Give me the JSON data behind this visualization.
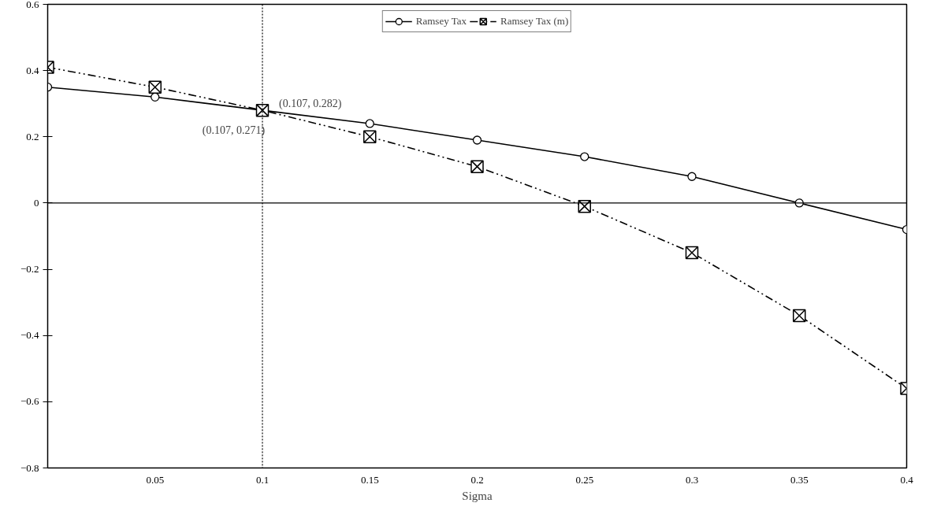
{
  "chart_data": {
    "type": "line",
    "xlabel": "Sigma",
    "x": [
      0,
      0.05,
      0.1,
      0.15,
      0.2,
      0.25,
      0.3,
      0.35,
      0.4
    ],
    "series": [
      {
        "name": "Ramsey Tax",
        "color": "#000000",
        "marker": "circle",
        "line_style": "solid",
        "values": [
          0.35,
          0.32,
          0.28,
          0.24,
          0.19,
          0.14,
          0.08,
          0,
          -0.08
        ]
      },
      {
        "name": "Ramsey Tax (m)",
        "color": "#000000",
        "marker": "cross",
        "line_style": "dashed",
        "values": [
          0.41,
          0.35,
          0.28,
          0.2,
          0.11,
          -0.01,
          -0.15,
          -0.34,
          -0.56
        ]
      }
    ],
    "xlim": [
      0,
      0.4
    ],
    "xticks": [
      0.05,
      0.1,
      0.15,
      0.2,
      0.25,
      0.3,
      0.35,
      0.4
    ],
    "ylim": [
      -0.8,
      0.6
    ],
    "yticks": [
      -0.8,
      -0.6,
      -0.4,
      -0.2,
      0,
      0.2,
      0.4,
      0.6
    ],
    "ref_lines": [
      {
        "axis": "x",
        "value": 0.1,
        "line_style": "dotted",
        "color": "#000000"
      }
    ],
    "annotations": [
      {
        "text": "(0.107, 0.282)",
        "x": 0.107,
        "y": 0.282
      },
      {
        "text": "(0.107, 0.271)",
        "x": 0.107,
        "y": 0.271
      }
    ],
    "legend": "top",
    "grid": false
  }
}
